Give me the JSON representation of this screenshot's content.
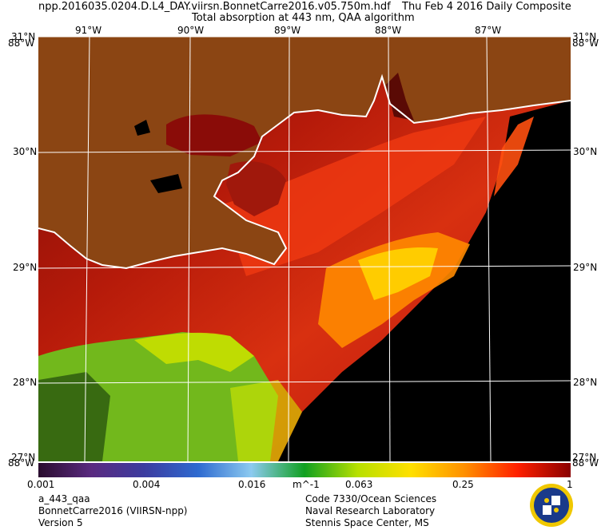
{
  "header": {
    "line1_left": "npp.2016035.0204.D.L4_DAY.viirsn.BonnetCarre2016.v05.750m.hdf",
    "line1_right": "Thu Feb  4 2016 Daily Composite",
    "line2": "Total absorption at 443 nm, QAA algorithm"
  },
  "map": {
    "longitude_labels": [
      "91°W",
      "90°W",
      "89°W",
      "88°W",
      "87°W"
    ],
    "latitude_labels": [
      "31°N",
      "30°N",
      "29°N",
      "28°N",
      "27°N"
    ],
    "corner_labels": {
      "top_left": "88°W",
      "top_right": "88°W",
      "bottom_left": "88°W",
      "bottom_right": "88°W"
    },
    "colors": {
      "land": "#8b4513",
      "no_data": "#000000",
      "grid": "#ffffff"
    }
  },
  "colorbar": {
    "ticks": [
      "0.001",
      "0.004",
      "0.016",
      "m^-1",
      "0.063",
      "0.25",
      "1"
    ],
    "palette": [
      "#2a0c2e",
      "#5a2a80",
      "#3c3ca0",
      "#2e6ad0",
      "#8ccaf0",
      "#10a020",
      "#b8e000",
      "#ffe000",
      "#ff9000",
      "#ff2000",
      "#8a0000"
    ]
  },
  "footer": {
    "left": [
      "a_443_qaa",
      "BonnetCarre2016 (VIIRSN-npp)",
      "Version 5"
    ],
    "right": [
      "Code 7330/Ocean Sciences",
      "Naval Research Laboratory",
      "Stennis Space Center, MS"
    ]
  }
}
